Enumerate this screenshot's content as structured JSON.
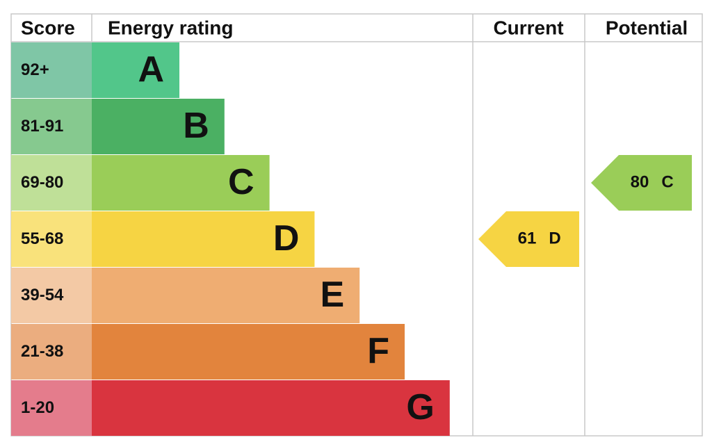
{
  "header": {
    "score": "Score",
    "energy_rating": "Energy rating",
    "current": "Current",
    "potential": "Potential"
  },
  "bands": [
    {
      "score": "92+",
      "letter": "A",
      "color": "#52c68a",
      "score_color": "#7fc6a6"
    },
    {
      "score": "81-91",
      "letter": "B",
      "color": "#4bb063",
      "score_color": "#86c98f"
    },
    {
      "score": "69-80",
      "letter": "C",
      "color": "#9acd58",
      "score_color": "#bfe098"
    },
    {
      "score": "55-68",
      "letter": "D",
      "color": "#f6d443",
      "score_color": "#f9e27b"
    },
    {
      "score": "39-54",
      "letter": "E",
      "color": "#efad72",
      "score_color": "#f3c9a5"
    },
    {
      "score": "21-38",
      "letter": "F",
      "color": "#e2843d",
      "score_color": "#ebad7f"
    },
    {
      "score": "1-20",
      "letter": "G",
      "color": "#d9343f",
      "score_color": "#e47c8c"
    }
  ],
  "current": {
    "value": 61,
    "band": "D"
  },
  "potential": {
    "value": 80,
    "band": "C"
  }
}
